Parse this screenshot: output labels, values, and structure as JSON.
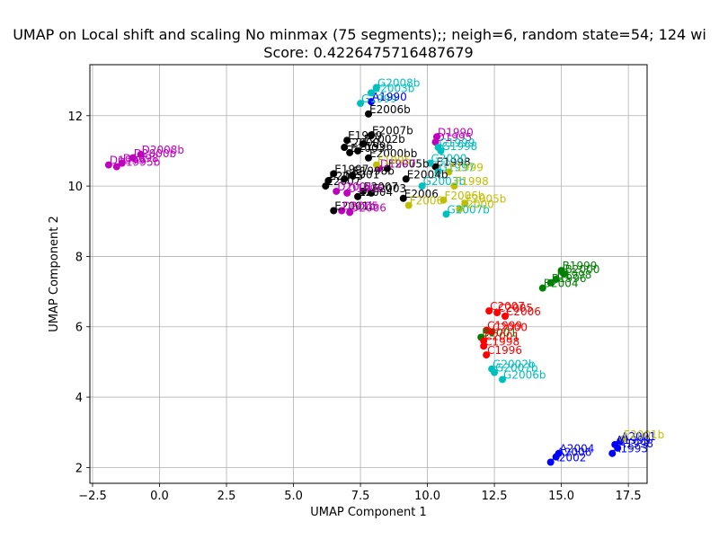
{
  "chart_data": {
    "type": "scatter",
    "title": "UMAP on Local shift and scaling No minmax (75 segments);; neigh=6, random state=54; 124 wi",
    "subtitle": "Score: 0.4226475716487679",
    "xlabel": "UMAP Component 1",
    "ylabel": "UMAP Component 2",
    "xlim": [
      -2.6,
      18.2
    ],
    "ylim": [
      1.55,
      13.45
    ],
    "xticks": [
      -2.5,
      0.0,
      2.5,
      5.0,
      7.5,
      10.0,
      12.5,
      15.0,
      17.5
    ],
    "xtick_labels": [
      "−2.5",
      "0.0",
      "2.5",
      "5.0",
      "7.5",
      "10.0",
      "12.5",
      "15.0",
      "17.5"
    ],
    "yticks": [
      2,
      4,
      6,
      8,
      10,
      12
    ],
    "ytick_labels": [
      "2",
      "4",
      "6",
      "8",
      "10",
      "12"
    ],
    "grid": true,
    "colors": {
      "A": "#0000ff",
      "B": "#008000",
      "C": "#ff0000",
      "D": "#bf00bf",
      "E": "#000000",
      "F": "#bfbf00",
      "G": "#00bfbf"
    },
    "points": [
      {
        "x": 7.8,
        "y": 12.05,
        "label": "E2006b",
        "group": "E"
      },
      {
        "x": 7.9,
        "y": 11.45,
        "label": "E2007b",
        "group": "E"
      },
      {
        "x": 7.0,
        "y": 11.3,
        "label": "E1999",
        "group": "E"
      },
      {
        "x": 7.6,
        "y": 11.2,
        "label": "E2002b",
        "group": "E"
      },
      {
        "x": 6.9,
        "y": 11.1,
        "label": "E2000",
        "group": "E"
      },
      {
        "x": 7.4,
        "y": 11.0,
        "label": "E1996",
        "group": "E"
      },
      {
        "x": 7.1,
        "y": 10.95,
        "label": "E2003",
        "group": "E"
      },
      {
        "x": 7.8,
        "y": 10.8,
        "label": "E2000bb",
        "group": "E"
      },
      {
        "x": 8.5,
        "y": 10.5,
        "label": "E2005b",
        "group": "E"
      },
      {
        "x": 10.3,
        "y": 10.55,
        "label": "E1998",
        "group": "E"
      },
      {
        "x": 6.5,
        "y": 10.35,
        "label": "E1997",
        "group": "E"
      },
      {
        "x": 7.2,
        "y": 10.3,
        "label": "E1998b",
        "group": "E"
      },
      {
        "x": 6.9,
        "y": 10.2,
        "label": "E2001",
        "group": "E"
      },
      {
        "x": 9.2,
        "y": 10.2,
        "label": "E2004b",
        "group": "E"
      },
      {
        "x": 6.3,
        "y": 10.15,
        "label": "E2005",
        "group": "E"
      },
      {
        "x": 6.2,
        "y": 10.0,
        "label": "E2007",
        "group": "E"
      },
      {
        "x": 7.6,
        "y": 9.85,
        "label": "E2007",
        "group": "E"
      },
      {
        "x": 7.9,
        "y": 9.8,
        "label": "E2003",
        "group": "E"
      },
      {
        "x": 7.4,
        "y": 9.7,
        "label": "E2004",
        "group": "E"
      },
      {
        "x": 9.1,
        "y": 9.65,
        "label": "E2006",
        "group": "E"
      },
      {
        "x": 6.5,
        "y": 9.3,
        "label": "E2001b",
        "group": "E"
      },
      {
        "x": 10.35,
        "y": 11.4,
        "label": "D1990",
        "group": "D"
      },
      {
        "x": 10.3,
        "y": 11.25,
        "label": "D1995",
        "group": "D"
      },
      {
        "x": -0.7,
        "y": 10.9,
        "label": "D2008b",
        "group": "D"
      },
      {
        "x": -1.0,
        "y": 10.8,
        "label": "D2000b",
        "group": "D"
      },
      {
        "x": -1.4,
        "y": 10.65,
        "label": "D1998",
        "group": "D"
      },
      {
        "x": -1.6,
        "y": 10.55,
        "label": "D1995b",
        "group": "D"
      },
      {
        "x": -1.9,
        "y": 10.6,
        "label": "D1999",
        "group": "D"
      },
      {
        "x": 8.2,
        "y": 10.5,
        "label": "D1997",
        "group": "D"
      },
      {
        "x": 6.6,
        "y": 9.85,
        "label": "D2001",
        "group": "D"
      },
      {
        "x": 7.0,
        "y": 9.8,
        "label": "D1996",
        "group": "D"
      },
      {
        "x": 6.8,
        "y": 9.3,
        "label": "D2005",
        "group": "D"
      },
      {
        "x": 7.1,
        "y": 9.25,
        "label": "D2006",
        "group": "D"
      },
      {
        "x": 8.1,
        "y": 12.8,
        "label": "G2008b",
        "group": "G"
      },
      {
        "x": 7.9,
        "y": 12.65,
        "label": "G2003b",
        "group": "G"
      },
      {
        "x": 7.5,
        "y": 12.35,
        "label": "G1999",
        "group": "G"
      },
      {
        "x": 10.4,
        "y": 11.1,
        "label": "G1999",
        "group": "G"
      },
      {
        "x": 10.5,
        "y": 11.0,
        "label": "G1998",
        "group": "G"
      },
      {
        "x": 10.1,
        "y": 10.65,
        "label": "G2000",
        "group": "G"
      },
      {
        "x": 10.4,
        "y": 10.4,
        "label": "G1997",
        "group": "G"
      },
      {
        "x": 9.8,
        "y": 10.0,
        "label": "G2003b",
        "group": "G"
      },
      {
        "x": 10.7,
        "y": 9.2,
        "label": "G2007b",
        "group": "G"
      },
      {
        "x": 12.4,
        "y": 4.8,
        "label": "G2002b",
        "group": "G"
      },
      {
        "x": 12.5,
        "y": 4.7,
        "label": "G2007b",
        "group": "G"
      },
      {
        "x": 12.8,
        "y": 4.5,
        "label": "G2006b",
        "group": "G"
      },
      {
        "x": 7.9,
        "y": 12.4,
        "label": "A1990",
        "group": "A"
      },
      {
        "x": 17.2,
        "y": 2.75,
        "label": "A2001",
        "group": "A"
      },
      {
        "x": 17.0,
        "y": 2.65,
        "label": "A1999",
        "group": "A"
      },
      {
        "x": 17.1,
        "y": 2.55,
        "label": "A1998",
        "group": "A"
      },
      {
        "x": 16.9,
        "y": 2.4,
        "label": "A1993",
        "group": "A"
      },
      {
        "x": 14.9,
        "y": 2.4,
        "label": "A2004",
        "group": "A"
      },
      {
        "x": 14.8,
        "y": 2.3,
        "label": "A2006",
        "group": "A"
      },
      {
        "x": 14.6,
        "y": 2.15,
        "label": "A2002",
        "group": "A"
      },
      {
        "x": 8.1,
        "y": 10.6,
        "label": "F1995",
        "group": "F"
      },
      {
        "x": 10.8,
        "y": 10.4,
        "label": "F1999",
        "group": "F"
      },
      {
        "x": 11.0,
        "y": 10.0,
        "label": "F1998",
        "group": "F"
      },
      {
        "x": 10.6,
        "y": 9.6,
        "label": "F2006b",
        "group": "F"
      },
      {
        "x": 11.4,
        "y": 9.5,
        "label": "F2005b",
        "group": "F"
      },
      {
        "x": 9.3,
        "y": 9.45,
        "label": "F2006",
        "group": "F"
      },
      {
        "x": 11.2,
        "y": 9.35,
        "label": "F2000",
        "group": "F"
      },
      {
        "x": 17.3,
        "y": 2.8,
        "label": "F2001b",
        "group": "F"
      },
      {
        "x": 15.0,
        "y": 7.6,
        "label": "B1999",
        "group": "B"
      },
      {
        "x": 15.1,
        "y": 7.5,
        "label": "B2000",
        "group": "B"
      },
      {
        "x": 14.8,
        "y": 7.35,
        "label": "B1998",
        "group": "B"
      },
      {
        "x": 14.6,
        "y": 7.25,
        "label": "B1996",
        "group": "B"
      },
      {
        "x": 14.3,
        "y": 7.1,
        "label": "B2004",
        "group": "B"
      },
      {
        "x": 12.0,
        "y": 5.7,
        "label": "B2001",
        "group": "B"
      },
      {
        "x": 12.3,
        "y": 6.45,
        "label": "C2007",
        "group": "C"
      },
      {
        "x": 12.6,
        "y": 6.4,
        "label": "C2005",
        "group": "C"
      },
      {
        "x": 12.9,
        "y": 6.3,
        "label": "C2006",
        "group": "C"
      },
      {
        "x": 12.2,
        "y": 5.9,
        "label": "C1999",
        "group": "C"
      },
      {
        "x": 12.4,
        "y": 5.85,
        "label": "C2000",
        "group": "C"
      },
      {
        "x": 12.1,
        "y": 5.6,
        "label": "C2001",
        "group": "C"
      },
      {
        "x": 12.1,
        "y": 5.45,
        "label": "C1998",
        "group": "C"
      },
      {
        "x": 12.2,
        "y": 5.2,
        "label": "C1996",
        "group": "C"
      }
    ]
  }
}
